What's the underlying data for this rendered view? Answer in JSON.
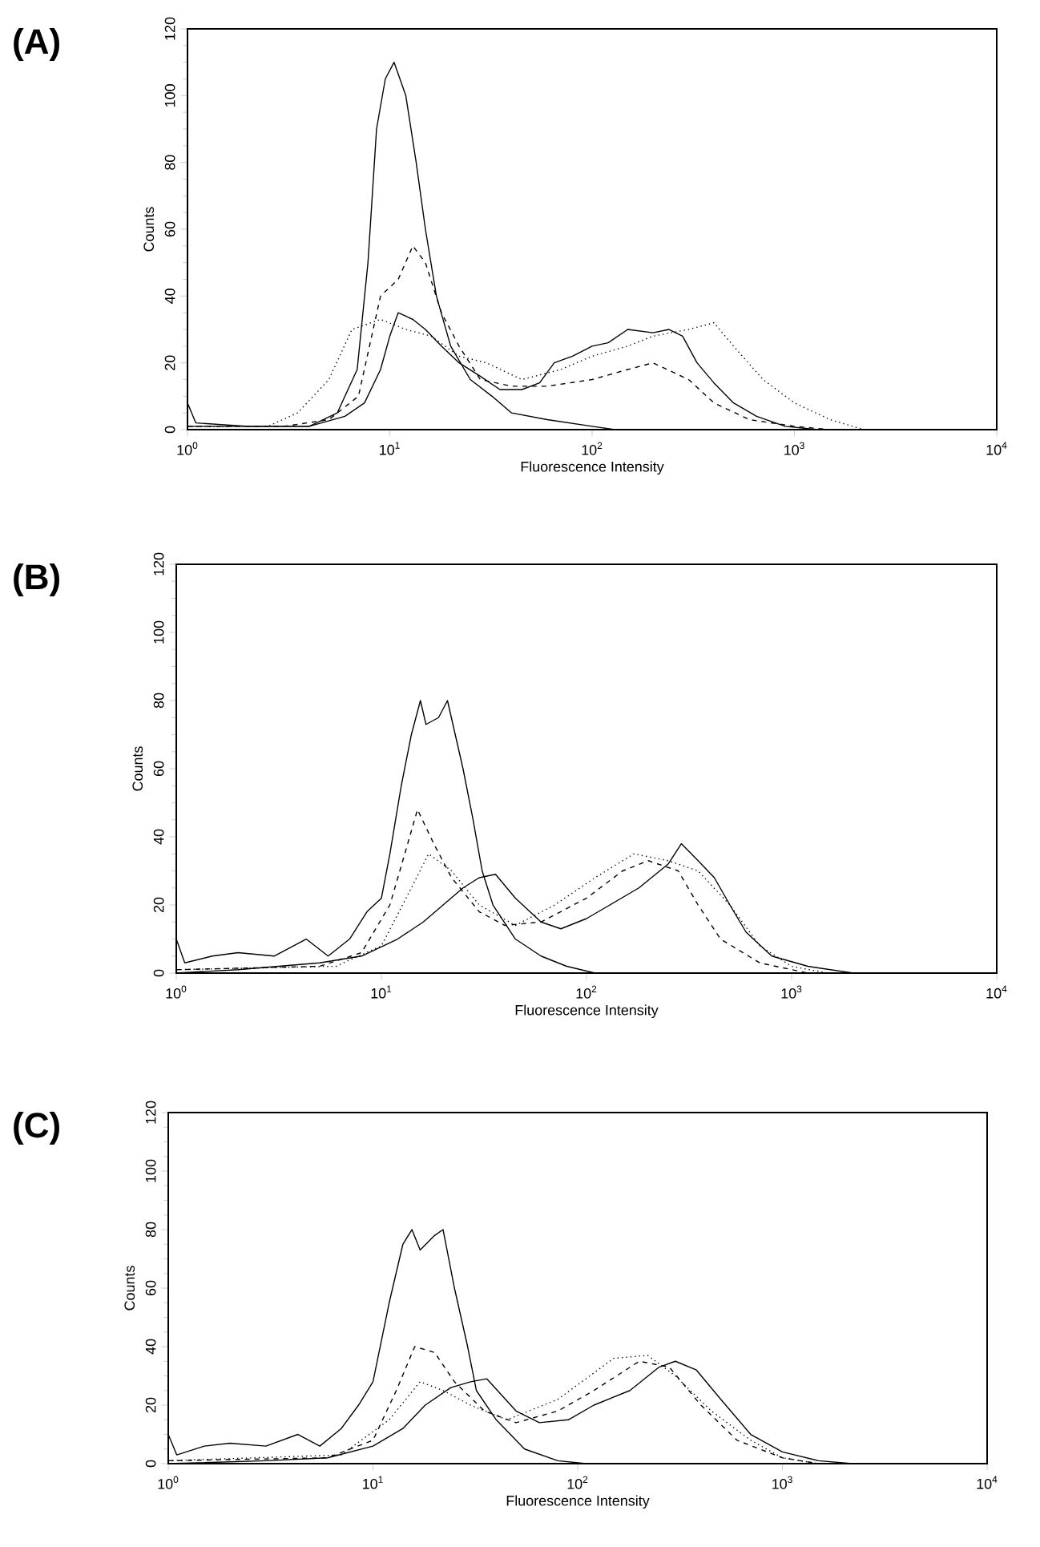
{
  "chart_data": [
    {
      "type": "line",
      "title": "(A)",
      "xlabel": "Fluorescence Intensity",
      "ylabel": "Counts",
      "log": "x",
      "xlim": [
        1,
        10000
      ],
      "ylim": [
        0,
        120
      ],
      "xticks": [
        {
          "value": 1,
          "label": "10$^{0}$"
        },
        {
          "value": 10,
          "label": "10$^{1}$"
        },
        {
          "value": 100,
          "label": "10$^{2}$"
        },
        {
          "value": 1000,
          "label": "10$^{3}$"
        },
        {
          "value": 10000,
          "label": "10$^{4}$"
        }
      ],
      "yticks": [
        0,
        20,
        40,
        60,
        80,
        100,
        120
      ],
      "series": [
        {
          "color": "#000000",
          "line_style": "solid",
          "x": [
            1,
            1.1,
            2,
            4,
            5.5,
            6.9,
            7.8,
            8.6,
            9.5,
            10.5,
            12,
            13.5,
            15,
            17,
            20,
            25,
            32,
            40,
            60,
            100,
            130,
            10000
          ],
          "values": [
            8,
            2,
            1,
            1,
            5,
            18,
            50,
            90,
            105,
            110,
            100,
            80,
            60,
            40,
            25,
            15,
            10,
            5,
            3,
            1,
            0,
            0
          ]
        },
        {
          "color": "#000000",
          "line_style": "dashed",
          "x": [
            1,
            3,
            5,
            7,
            9,
            11,
            13,
            15,
            18,
            22,
            28,
            40,
            60,
            100,
            150,
            200,
            300,
            400,
            600,
            1000,
            1500,
            10000
          ],
          "values": [
            1,
            1,
            3,
            10,
            40,
            45,
            55,
            50,
            35,
            25,
            15,
            13,
            13,
            15,
            18,
            20,
            15,
            8,
            3,
            1,
            0,
            0
          ]
        },
        {
          "color": "#000000",
          "line_style": "dotted",
          "x": [
            1,
            2.5,
            3.5,
            5,
            6.5,
            9,
            12,
            16,
            22,
            30,
            45,
            70,
            100,
            150,
            200,
            300,
            400,
            500,
            700,
            1000,
            1500,
            2200,
            10000
          ],
          "values": [
            1,
            1,
            5,
            15,
            30,
            33,
            30,
            28,
            22,
            20,
            15,
            18,
            22,
            25,
            28,
            30,
            32,
            25,
            15,
            8,
            3,
            0,
            0
          ]
        },
        {
          "color": "#000000",
          "line_style": "solid",
          "x": [
            1,
            4,
            6,
            7.5,
            9,
            10,
            11,
            13,
            15,
            18,
            22,
            28,
            35,
            45,
            55,
            65,
            80,
            100,
            120,
            150,
            200,
            240,
            280,
            330,
            400,
            500,
            650,
            900,
            1300,
            10000
          ],
          "values": [
            1,
            1,
            4,
            8,
            18,
            28,
            35,
            33,
            30,
            25,
            20,
            16,
            12,
            12,
            14,
            20,
            22,
            25,
            26,
            30,
            29,
            30,
            28,
            20,
            14,
            8,
            4,
            1,
            0,
            0
          ]
        }
      ]
    },
    {
      "type": "line",
      "title": "(B)",
      "xlabel": "Fluorescence Intensity",
      "ylabel": "Counts",
      "log": "x",
      "xlim": [
        1,
        10000
      ],
      "ylim": [
        0,
        120
      ],
      "xticks": [
        {
          "value": 1,
          "label": "10$^{0}$"
        },
        {
          "value": 10,
          "label": "10$^{1}$"
        },
        {
          "value": 100,
          "label": "10$^{2}$"
        },
        {
          "value": 1000,
          "label": "10$^{3}$"
        },
        {
          "value": 10000,
          "label": "10$^{4}$"
        }
      ],
      "yticks": [
        0,
        20,
        40,
        60,
        80,
        100,
        120
      ],
      "series": [
        {
          "color": "#000000",
          "line_style": "solid",
          "x": [
            1,
            1.1,
            1.5,
            2,
            3,
            4.3,
            5.5,
            7,
            8.5,
            10,
            11,
            12.5,
            14,
            15.5,
            16.5,
            19,
            21,
            25,
            28,
            31,
            35,
            45,
            60,
            80,
            110,
            10000
          ],
          "values": [
            10,
            3,
            5,
            6,
            5,
            10,
            5,
            10,
            18,
            22,
            35,
            55,
            70,
            80,
            73,
            75,
            80,
            60,
            45,
            30,
            20,
            10,
            5,
            2,
            0,
            0
          ]
        },
        {
          "color": "#000000",
          "line_style": "dashed",
          "x": [
            1,
            5,
            8,
            11,
            13,
            15,
            18,
            22,
            30,
            40,
            60,
            100,
            150,
            200,
            280,
            350,
            450,
            700,
            1200,
            10000
          ],
          "values": [
            1,
            2,
            6,
            20,
            35,
            48,
            38,
            28,
            18,
            14,
            15,
            22,
            30,
            33,
            30,
            20,
            10,
            3,
            0,
            0
          ]
        },
        {
          "color": "#000000",
          "line_style": "dotted",
          "x": [
            1,
            6,
            10,
            14,
            17,
            22,
            30,
            45,
            70,
            110,
            170,
            250,
            350,
            500,
            700,
            1000,
            1500,
            10000
          ],
          "values": [
            1,
            2,
            8,
            25,
            35,
            30,
            20,
            14,
            20,
            28,
            35,
            33,
            30,
            20,
            8,
            2,
            0,
            0
          ]
        },
        {
          "color": "#000000",
          "line_style": "solid",
          "x": [
            1,
            2,
            5,
            8,
            12,
            16,
            20,
            25,
            30,
            36,
            45,
            60,
            75,
            100,
            130,
            180,
            250,
            290,
            350,
            420,
            500,
            600,
            800,
            1200,
            2000,
            10000
          ],
          "values": [
            0,
            1,
            3,
            5,
            10,
            15,
            20,
            25,
            28,
            29,
            22,
            15,
            13,
            16,
            20,
            25,
            32,
            38,
            33,
            28,
            20,
            12,
            5,
            2,
            0,
            0
          ]
        }
      ]
    },
    {
      "type": "line",
      "title": "(C)",
      "xlabel": "Fluorescence Intensity",
      "ylabel": "Counts",
      "log": "x",
      "xlim": [
        1,
        10000
      ],
      "ylim": [
        0,
        120
      ],
      "xticks": [
        {
          "value": 1,
          "label": "10$^{0}$"
        },
        {
          "value": 10,
          "label": "10$^{1}$"
        },
        {
          "value": 100,
          "label": "10$^{2}$"
        },
        {
          "value": 1000,
          "label": "10$^{3}$"
        },
        {
          "value": 10000,
          "label": "10$^{4}$"
        }
      ],
      "yticks": [
        0,
        20,
        40,
        60,
        80,
        100,
        120
      ],
      "series": [
        {
          "color": "#000000",
          "line_style": "solid",
          "x": [
            1,
            1.1,
            1.5,
            2,
            3,
            4.3,
            5.5,
            7,
            8.5,
            10,
            12,
            14,
            15.5,
            17,
            20,
            22,
            25,
            29,
            32,
            40,
            55,
            80,
            110,
            10000
          ],
          "values": [
            10,
            3,
            6,
            7,
            6,
            10,
            6,
            12,
            20,
            28,
            55,
            75,
            80,
            73,
            78,
            80,
            60,
            40,
            25,
            15,
            5,
            1,
            0,
            0
          ]
        },
        {
          "color": "#000000",
          "line_style": "dashed",
          "x": [
            1,
            6,
            10,
            13,
            16,
            20,
            25,
            35,
            50,
            80,
            120,
            200,
            280,
            400,
            600,
            1000,
            1500,
            10000
          ],
          "values": [
            1,
            2,
            8,
            25,
            40,
            38,
            28,
            18,
            14,
            18,
            25,
            35,
            33,
            20,
            8,
            2,
            0,
            0
          ]
        },
        {
          "color": "#000000",
          "line_style": "dotted",
          "x": [
            1,
            7,
            12,
            17,
            22,
            30,
            45,
            80,
            150,
            220,
            300,
            450,
            700,
            1000,
            1500,
            10000
          ],
          "values": [
            1,
            3,
            15,
            28,
            25,
            20,
            15,
            22,
            36,
            37,
            30,
            18,
            8,
            2,
            0,
            0
          ]
        },
        {
          "color": "#000000",
          "line_style": "solid",
          "x": [
            1,
            3,
            6,
            10,
            14,
            18,
            24,
            30,
            36,
            50,
            65,
            90,
            120,
            180,
            250,
            300,
            380,
            500,
            700,
            1000,
            1500,
            2200,
            10000
          ],
          "values": [
            0,
            1,
            2,
            6,
            12,
            20,
            26,
            28,
            29,
            18,
            14,
            15,
            20,
            25,
            33,
            35,
            32,
            22,
            10,
            4,
            1,
            0,
            0
          ]
        }
      ]
    }
  ]
}
